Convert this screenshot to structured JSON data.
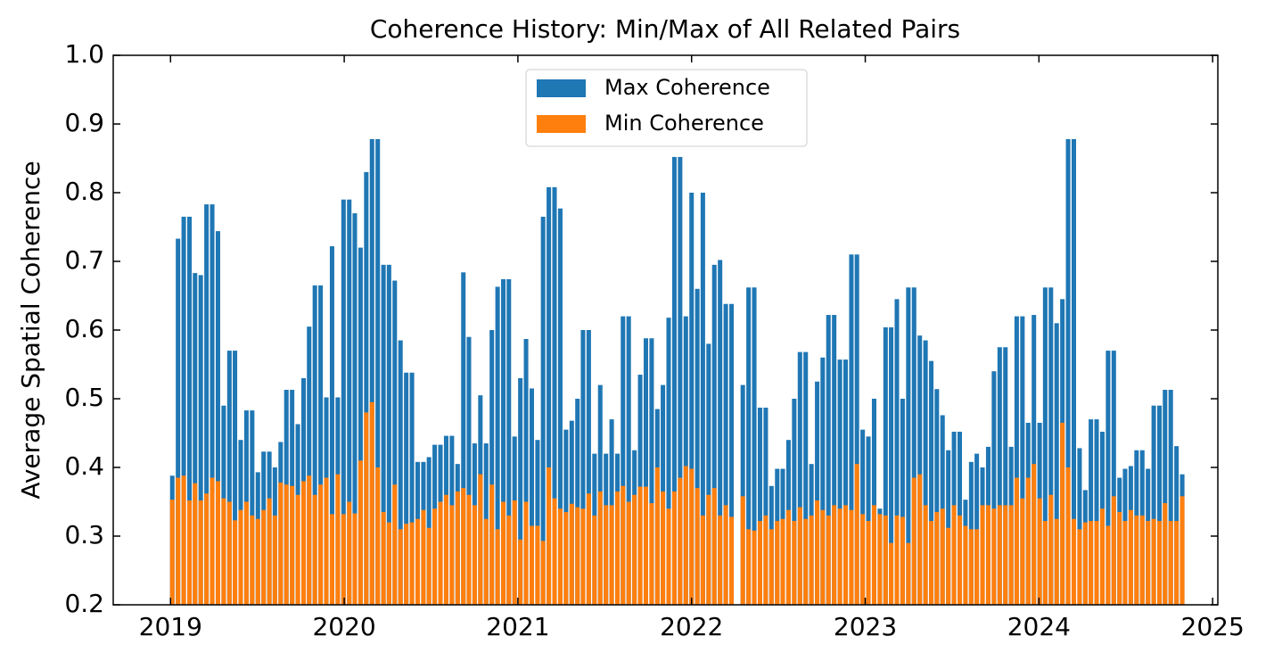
{
  "chart_data": {
    "type": "bar",
    "title": "Coherence History: Min/Max of All Related Pairs",
    "ylabel": "Average Spatial Coherence",
    "xlim": [
      2018.67,
      2025.03
    ],
    "xticks": [
      2019,
      2020,
      2021,
      2022,
      2023,
      2024,
      2025
    ],
    "ylim": [
      0.2,
      1.0
    ],
    "yticks": [
      0.2,
      0.3,
      0.4,
      0.5,
      0.6,
      0.7,
      0.8,
      0.9,
      {
        "value": 1.0,
        "label": "1.0"
      }
    ],
    "legend": "upper center",
    "x": [
      2019.01,
      2019.043,
      2019.076,
      2019.109,
      2019.141,
      2019.174,
      2019.207,
      2019.24,
      2019.273,
      2019.306,
      2019.339,
      2019.371,
      2019.404,
      2019.437,
      2019.47,
      2019.503,
      2019.536,
      2019.569,
      2019.601,
      2019.634,
      2019.667,
      2019.7,
      2019.733,
      2019.766,
      2019.798,
      2019.831,
      2019.864,
      2019.897,
      2019.93,
      2019.963,
      2019.996,
      2020.029,
      2020.061,
      2020.094,
      2020.127,
      2020.16,
      2020.193,
      2020.226,
      2020.258,
      2020.291,
      2020.324,
      2020.357,
      2020.39,
      2020.423,
      2020.456,
      2020.488,
      2020.521,
      2020.554,
      2020.587,
      2020.62,
      2020.653,
      2020.686,
      2020.718,
      2020.751,
      2020.784,
      2020.817,
      2020.85,
      2020.883,
      2020.916,
      2020.948,
      2020.981,
      2021.014,
      2021.047,
      2021.08,
      2021.113,
      2021.145,
      2021.178,
      2021.211,
      2021.244,
      2021.277,
      2021.31,
      2021.343,
      2021.375,
      2021.408,
      2021.441,
      2021.474,
      2021.507,
      2021.54,
      2021.573,
      2021.605,
      2021.638,
      2021.671,
      2021.704,
      2021.737,
      2021.77,
      2021.803,
      2021.835,
      2021.868,
      2021.901,
      2021.934,
      2021.967,
      2022.0,
      2022.033,
      2022.065,
      2022.098,
      2022.131,
      2022.164,
      2022.197,
      2022.23,
      2022.295,
      2022.328,
      2022.361,
      2022.394,
      2022.427,
      2022.46,
      2022.493,
      2022.525,
      2022.558,
      2022.591,
      2022.624,
      2022.657,
      2022.69,
      2022.723,
      2022.755,
      2022.788,
      2022.821,
      2022.854,
      2022.887,
      2022.92,
      2022.952,
      2022.985,
      2023.018,
      2023.051,
      2023.084,
      2023.117,
      2023.149,
      2023.182,
      2023.215,
      2023.248,
      2023.281,
      2023.314,
      2023.347,
      2023.38,
      2023.412,
      2023.445,
      2023.478,
      2023.511,
      2023.544,
      2023.577,
      2023.61,
      2023.642,
      2023.675,
      2023.708,
      2023.741,
      2023.774,
      2023.807,
      2023.84,
      2023.872,
      2023.905,
      2023.938,
      2023.971,
      2024.004,
      2024.036,
      2024.069,
      2024.102,
      2024.135,
      2024.168,
      2024.201,
      2024.234,
      2024.267,
      2024.299,
      2024.332,
      2024.365,
      2024.398,
      2024.431,
      2024.464,
      2024.496,
      2024.529,
      2024.562,
      2024.595,
      2024.628,
      2024.661,
      2024.694,
      2024.726,
      2024.759,
      2024.792,
      2024.825
    ],
    "series": [
      {
        "name": "Max Coherence",
        "color": "#1f77b4",
        "values": [
          0.388,
          0.733,
          0.765,
          0.765,
          0.683,
          0.68,
          0.783,
          0.783,
          0.744,
          0.49,
          0.57,
          0.57,
          0.44,
          0.483,
          0.483,
          0.393,
          0.423,
          0.423,
          0.4,
          0.437,
          0.513,
          0.513,
          0.463,
          0.53,
          0.605,
          0.665,
          0.665,
          0.502,
          0.722,
          0.502,
          0.79,
          0.79,
          0.77,
          0.72,
          0.83,
          0.878,
          0.878,
          0.695,
          0.695,
          0.672,
          0.585,
          0.538,
          0.538,
          0.408,
          0.408,
          0.415,
          0.433,
          0.433,
          0.446,
          0.446,
          0.405,
          0.684,
          0.59,
          0.435,
          0.505,
          0.435,
          0.6,
          0.663,
          0.674,
          0.674,
          0.445,
          0.53,
          0.587,
          0.515,
          0.44,
          0.765,
          0.808,
          0.808,
          0.777,
          0.455,
          0.468,
          0.5,
          0.6,
          0.6,
          0.42,
          0.52,
          0.42,
          0.47,
          0.42,
          0.62,
          0.62,
          0.425,
          0.535,
          0.588,
          0.588,
          0.485,
          0.52,
          0.618,
          0.852,
          0.852,
          0.62,
          0.8,
          0.66,
          0.8,
          0.58,
          0.695,
          0.702,
          0.638,
          0.638,
          0.52,
          0.662,
          0.662,
          0.487,
          0.487,
          0.373,
          0.398,
          0.398,
          0.44,
          0.5,
          0.568,
          0.568,
          0.405,
          0.525,
          0.56,
          0.622,
          0.622,
          0.557,
          0.557,
          0.71,
          0.71,
          0.455,
          0.445,
          0.5,
          0.34,
          0.604,
          0.604,
          0.645,
          0.5,
          0.662,
          0.662,
          0.592,
          0.585,
          0.555,
          0.514,
          0.476,
          0.425,
          0.452,
          0.452,
          0.353,
          0.408,
          0.42,
          0.4,
          0.43,
          0.54,
          0.575,
          0.575,
          0.43,
          0.62,
          0.62,
          0.465,
          0.622,
          0.465,
          0.662,
          0.662,
          0.61,
          0.645,
          0.878,
          0.878,
          0.428,
          0.367,
          0.47,
          0.47,
          0.452,
          0.57,
          0.57,
          0.385,
          0.398,
          0.402,
          0.425,
          0.425,
          0.398,
          0.49,
          0.49,
          0.513,
          0.513,
          0.431,
          0.39
        ]
      },
      {
        "name": "Min Coherence",
        "color": "#ff7f0e",
        "values": [
          0.353,
          0.385,
          0.388,
          0.352,
          0.377,
          0.352,
          0.362,
          0.385,
          0.38,
          0.355,
          0.35,
          0.323,
          0.338,
          0.35,
          0.33,
          0.325,
          0.338,
          0.355,
          0.33,
          0.378,
          0.375,
          0.373,
          0.36,
          0.38,
          0.388,
          0.36,
          0.375,
          0.385,
          0.332,
          0.39,
          0.332,
          0.35,
          0.333,
          0.41,
          0.48,
          0.495,
          0.4,
          0.335,
          0.32,
          0.375,
          0.31,
          0.318,
          0.32,
          0.325,
          0.338,
          0.312,
          0.34,
          0.35,
          0.36,
          0.345,
          0.365,
          0.37,
          0.36,
          0.345,
          0.39,
          0.325,
          0.375,
          0.31,
          0.35,
          0.33,
          0.352,
          0.295,
          0.35,
          0.315,
          0.315,
          0.293,
          0.4,
          0.355,
          0.34,
          0.335,
          0.347,
          0.342,
          0.34,
          0.362,
          0.33,
          0.365,
          0.345,
          0.345,
          0.365,
          0.373,
          0.35,
          0.36,
          0.372,
          0.372,
          0.348,
          0.4,
          0.365,
          0.34,
          0.365,
          0.385,
          0.402,
          0.398,
          0.37,
          0.33,
          0.36,
          0.37,
          0.33,
          0.345,
          0.328,
          0.358,
          0.31,
          0.308,
          0.322,
          0.33,
          0.31,
          0.322,
          0.325,
          0.338,
          0.322,
          0.342,
          0.325,
          0.33,
          0.352,
          0.338,
          0.33,
          0.345,
          0.34,
          0.345,
          0.338,
          0.405,
          0.332,
          0.322,
          0.345,
          0.332,
          0.33,
          0.29,
          0.33,
          0.328,
          0.29,
          0.385,
          0.39,
          0.345,
          0.322,
          0.335,
          0.34,
          0.312,
          0.345,
          0.33,
          0.315,
          0.31,
          0.31,
          0.345,
          0.345,
          0.34,
          0.345,
          0.345,
          0.345,
          0.385,
          0.355,
          0.385,
          0.405,
          0.355,
          0.322,
          0.36,
          0.325,
          0.465,
          0.4,
          0.325,
          0.31,
          0.32,
          0.322,
          0.322,
          0.34,
          0.315,
          0.358,
          0.335,
          0.322,
          0.338,
          0.33,
          0.33,
          0.322,
          0.325,
          0.322,
          0.348,
          0.322,
          0.322,
          0.358
        ]
      }
    ]
  }
}
